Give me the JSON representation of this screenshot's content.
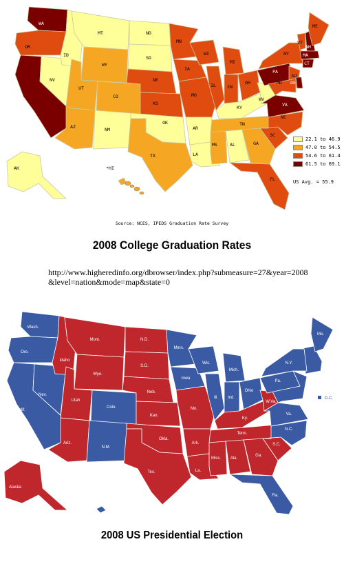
{
  "colors": {
    "range1": "#ffff99",
    "range2": "#f5a623",
    "range3": "#e04b10",
    "range4": "#7a0000",
    "democrat": "#3a5aa3",
    "republican": "#c0272d",
    "state_border": "#c9c9a0"
  },
  "map1": {
    "source": "Source: NCES, IPEDS Graduation Rate Survey",
    "title": "2008 College Graduation Rates",
    "url_line1": "http://www.higheredinfo.org/dbrowser/index.php?submeasure=27&year=2008",
    "url_line2": "&level=nation&mode=map&state=0",
    "us_avg": "US Avg. = 55.9",
    "legend": [
      {
        "label": "22.1 to 46.9",
        "color": "#ffff99"
      },
      {
        "label": "47.0 to 54.5",
        "color": "#f5a623"
      },
      {
        "label": "54.6 to 61.4",
        "color": "#e04b10"
      },
      {
        "label": "61.5 to 69.1",
        "color": "#7a0000"
      }
    ],
    "states": {
      "WA": "61.5 to 69.1",
      "OR": "54.6 to 61.4",
      "CA": "61.5 to 69.1",
      "NV": "22.1 to 46.9",
      "ID": "22.1 to 46.9",
      "MT": "22.1 to 46.9",
      "WY": "47.0 to 54.5",
      "UT": "47.0 to 54.5",
      "AZ": "47.0 to 54.5",
      "CO": "47.0 to 54.5",
      "NM": "22.1 to 46.9",
      "ND": "22.1 to 46.9",
      "SD": "22.1 to 46.9",
      "NE": "54.6 to 61.4",
      "KS": "54.6 to 61.4",
      "OK": "22.1 to 46.9",
      "TX": "47.0 to 54.5",
      "MN": "54.6 to 61.4",
      "IA": "54.6 to 61.4",
      "MO": "54.6 to 61.4",
      "AR": "22.1 to 46.9",
      "LA": "22.1 to 46.9",
      "WI": "54.6 to 61.4",
      "IL": "54.6 to 61.4",
      "MI": "54.6 to 61.4",
      "IN": "54.6 to 61.4",
      "OH": "54.6 to 61.4",
      "KY": "22.1 to 46.9",
      "TN": "47.0 to 54.5",
      "MS": "47.0 to 54.5",
      "AL": "22.1 to 46.9",
      "GA": "47.0 to 54.5",
      "FL": "54.6 to 61.4",
      "SC": "54.6 to 61.4",
      "NC": "54.6 to 61.4",
      "VA": "61.5 to 69.1",
      "WV": "22.1 to 46.9",
      "PA": "61.5 to 69.1",
      "NY": "54.6 to 61.4",
      "VT": "54.6 to 61.4",
      "NH": "61.5 to 69.1",
      "ME": "54.6 to 61.4",
      "MA": "61.5 to 69.1",
      "CT": "61.5 to 69.1",
      "NJ": "54.6 to 61.4",
      "DE": "61.5 to 69.1",
      "MD": "54.6 to 61.4",
      "AK": "22.1 to 46.9",
      "HI": "47.0 to 54.5"
    },
    "hi_label": "*HI"
  },
  "map2": {
    "title": "2008 US Presidential Election",
    "dc_label": "D.C.",
    "states": {
      "Wash.": "democrat",
      "Ore.": "democrat",
      "Calif.": "democrat",
      "Nev.": "democrat",
      "Idaho": "republican",
      "Mont.": "republican",
      "Wyo.": "republican",
      "Utah": "republican",
      "Ariz.": "republican",
      "Colo.": "democrat",
      "N.M.": "democrat",
      "N.D.": "republican",
      "S.D.": "republican",
      "Neb.": "republican",
      "Kan.": "republican",
      "Okla.": "republican",
      "Tex.": "republican",
      "Minn.": "democrat",
      "Iowa": "democrat",
      "Mo.": "republican",
      "Ark.": "republican",
      "La.": "republican",
      "Wis.": "democrat",
      "Ill.": "democrat",
      "Mich.": "democrat",
      "Ind.": "democrat",
      "Ohio": "democrat",
      "Ky.": "republican",
      "Tenn.": "republican",
      "Miss.": "republican",
      "Ala.": "republican",
      "Ga.": "republican",
      "Fla.": "democrat",
      "S.C.": "republican",
      "N.C.": "democrat",
      "Va.": "democrat",
      "W.Va.": "republican",
      "Pa.": "democrat",
      "N.Y.": "democrat",
      "Me.": "democrat",
      "Alaska": "republican",
      "Hawaii": "democrat"
    }
  }
}
